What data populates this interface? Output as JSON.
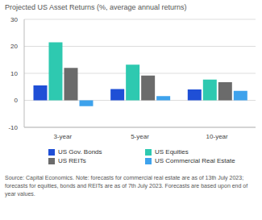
{
  "chart_data": {
    "type": "bar",
    "title": "Projected US Asset Returns (%, average annual returns)",
    "categories": [
      "3-year",
      "5-year",
      "10-year"
    ],
    "series": [
      {
        "name": "US Gov. Bonds",
        "color": "#1f4fd6",
        "values": [
          5.5,
          4.2,
          4.0
        ]
      },
      {
        "name": "US Equities",
        "color": "#2ec9b0",
        "values": [
          21.5,
          13.2,
          7.7
        ]
      },
      {
        "name": "US REITs",
        "color": "#6b6b6b",
        "values": [
          12.0,
          9.2,
          6.7
        ]
      },
      {
        "name": "US Commercial Real Estate",
        "color": "#3ea2ec",
        "values": [
          -2.2,
          1.6,
          3.5
        ]
      }
    ],
    "ylim": [
      -10,
      30
    ],
    "yticks": [
      -10,
      0,
      10,
      20,
      30
    ],
    "grid": true,
    "legend": "bottom",
    "source": "Source: Capital Economics. Note: forecasts for commercial real estate are as of 13th July 2023; forecasts for equities, bonds and REITs are as of 7th July 2023. Forecasts are based upon end of year values."
  }
}
